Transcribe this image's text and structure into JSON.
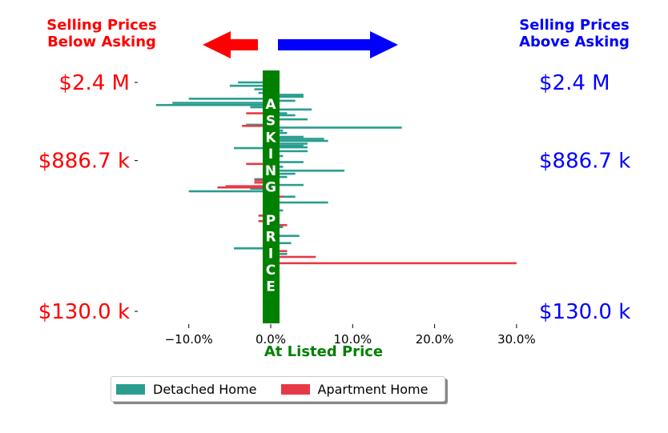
{
  "header": {
    "left_line1": "Selling Prices",
    "left_line2": "Below Asking",
    "right_line1": "Selling Prices",
    "right_line2": "Above Asking"
  },
  "center_label": "ASKING PRICE",
  "colors": {
    "detached": "#2a9d8f",
    "apartment": "#e63946",
    "left_text": "#ff0000",
    "right_text": "#0000ff",
    "center": "#008000",
    "left_arrow": "#ff0000",
    "right_arrow": "#0000ff"
  },
  "chart_data": {
    "type": "bar",
    "orientation": "horizontal",
    "xlabel": "At Listed Price",
    "x_ticks": [
      "−10.0%",
      "0.0%",
      "10.0%",
      "20.0%",
      "30.0%"
    ],
    "x_tick_values": [
      -10,
      0,
      10,
      20,
      30
    ],
    "xlim": [
      -15,
      32
    ],
    "y_ticks_left": [
      "$2.4 M",
      "$886.7 k",
      "$130.0 k"
    ],
    "y_ticks_right": [
      "$2.4 M",
      "$886.7 k",
      "$130.0 k"
    ],
    "y_tick_values": [
      2400000,
      886700,
      130000
    ],
    "y_scale": "log",
    "legend": [
      "Detached Home",
      "Apartment Home"
    ],
    "series": [
      {
        "name": "Detached Home",
        "points": [
          {
            "price": 2400000,
            "pct": -4.0
          },
          {
            "price": 2300000,
            "pct": -5.0
          },
          {
            "price": 2200000,
            "pct": -2.0
          },
          {
            "price": 2100000,
            "pct": -1.5
          },
          {
            "price": 2050000,
            "pct": 4.0
          },
          {
            "price": 2000000,
            "pct": 4.0
          },
          {
            "price": 1950000,
            "pct": -10.0
          },
          {
            "price": 1900000,
            "pct": 3.0
          },
          {
            "price": 1850000,
            "pct": -12.0
          },
          {
            "price": 1800000,
            "pct": -14.0
          },
          {
            "price": 1750000,
            "pct": -2.5
          },
          {
            "price": 1700000,
            "pct": 5.0
          },
          {
            "price": 1620000,
            "pct": 2.0
          },
          {
            "price": 1580000,
            "pct": 3.0
          },
          {
            "price": 1500000,
            "pct": 4.5
          },
          {
            "price": 1400000,
            "pct": -3.0
          },
          {
            "price": 1350000,
            "pct": 16.0
          },
          {
            "price": 1300000,
            "pct": 1.5
          },
          {
            "price": 1260000,
            "pct": 2.0
          },
          {
            "price": 1200000,
            "pct": 4.0
          },
          {
            "price": 1170000,
            "pct": 6.5
          },
          {
            "price": 1140000,
            "pct": 7.0
          },
          {
            "price": 1100000,
            "pct": 4.5
          },
          {
            "price": 1070000,
            "pct": 4.0
          },
          {
            "price": 1050000,
            "pct": 4.5
          },
          {
            "price": 1040000,
            "pct": -4.5
          },
          {
            "price": 1000000,
            "pct": 4.5
          },
          {
            "price": 940000,
            "pct": 1.5
          },
          {
            "price": 870000,
            "pct": 4.0
          },
          {
            "price": 820000,
            "pct": 1.5
          },
          {
            "price": 780000,
            "pct": 9.0
          },
          {
            "price": 750000,
            "pct": 3.0
          },
          {
            "price": 720000,
            "pct": 2.0
          },
          {
            "price": 700000,
            "pct": -2.0
          },
          {
            "price": 650000,
            "pct": 4.0
          },
          {
            "price": 620000,
            "pct": -2.5
          },
          {
            "price": 600000,
            "pct": -10.0
          },
          {
            "price": 560000,
            "pct": 3.0
          },
          {
            "price": 520000,
            "pct": 7.0
          },
          {
            "price": 470000,
            "pct": 1.5
          },
          {
            "price": 380000,
            "pct": 1.5
          },
          {
            "price": 340000,
            "pct": 3.5
          },
          {
            "price": 310000,
            "pct": 2.5
          },
          {
            "price": 290000,
            "pct": -4.5
          },
          {
            "price": 270000,
            "pct": 2.0
          }
        ]
      },
      {
        "name": "Apartment Home",
        "points": [
          {
            "price": 1620000,
            "pct": -3.0
          },
          {
            "price": 1380000,
            "pct": -3.5
          },
          {
            "price": 850000,
            "pct": -3.0
          },
          {
            "price": 690000,
            "pct": -2.0
          },
          {
            "price": 670000,
            "pct": -2.0
          },
          {
            "price": 640000,
            "pct": -5.5
          },
          {
            "price": 630000,
            "pct": -6.5
          },
          {
            "price": 560000,
            "pct": 1.5
          },
          {
            "price": 440000,
            "pct": -1.5
          },
          {
            "price": 410000,
            "pct": -1.5
          },
          {
            "price": 390000,
            "pct": 2.0
          },
          {
            "price": 280000,
            "pct": 2.0
          },
          {
            "price": 260000,
            "pct": 5.5
          },
          {
            "price": 240000,
            "pct": 30.0
          }
        ]
      }
    ]
  }
}
